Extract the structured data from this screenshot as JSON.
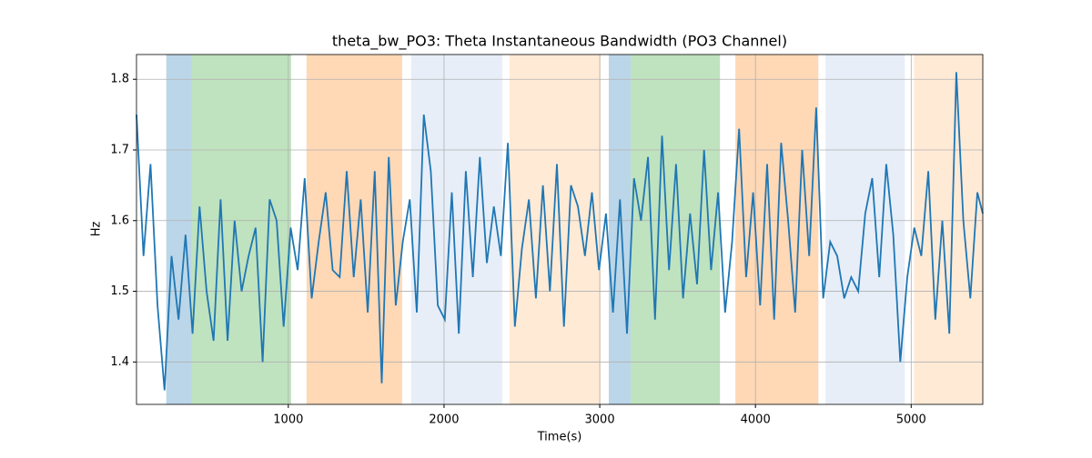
{
  "chart_data": {
    "type": "line",
    "title": "theta_bw_PO3: Theta Instantaneous Bandwidth (PO3 Channel)",
    "xlabel": "Time(s)",
    "ylabel": "Hz",
    "xlim": [
      25,
      5460
    ],
    "ylim": [
      1.34,
      1.835
    ],
    "xticks": [
      1000,
      2000,
      3000,
      4000,
      5000
    ],
    "yticks": [
      1.4,
      1.5,
      1.6,
      1.7,
      1.8
    ],
    "grid": true,
    "spans": [
      {
        "start": 216,
        "end": 380,
        "color": "#1f77b4",
        "alpha": 0.3
      },
      {
        "start": 380,
        "end": 1018,
        "color": "#2ca02c",
        "alpha": 0.3
      },
      {
        "start": 1117,
        "end": 1731,
        "color": "#ff7f0e",
        "alpha": 0.3
      },
      {
        "start": 1789,
        "end": 2374,
        "color": "#aec7e8",
        "alpha": 0.3
      },
      {
        "start": 2421,
        "end": 3006,
        "color": "#ffbb78",
        "alpha": 0.3
      },
      {
        "start": 3058,
        "end": 3199,
        "color": "#1f77b4",
        "alpha": 0.3
      },
      {
        "start": 3199,
        "end": 3772,
        "color": "#2ca02c",
        "alpha": 0.3
      },
      {
        "start": 3871,
        "end": 4404,
        "color": "#ff7f0e",
        "alpha": 0.3
      },
      {
        "start": 4450,
        "end": 4959,
        "color": "#aec7e8",
        "alpha": 0.3
      },
      {
        "start": 5018,
        "end": 5460,
        "color": "#ffbb78",
        "alpha": 0.3
      }
    ],
    "x": [
      25,
      70,
      115,
      160,
      205,
      250,
      295,
      340,
      385,
      430,
      475,
      520,
      565,
      610,
      655,
      700,
      745,
      790,
      835,
      880,
      925,
      970,
      1015,
      1060,
      1105,
      1150,
      1195,
      1240,
      1285,
      1330,
      1375,
      1420,
      1465,
      1510,
      1555,
      1600,
      1645,
      1690,
      1735,
      1780,
      1825,
      1870,
      1915,
      1960,
      2005,
      2050,
      2095,
      2140,
      2185,
      2230,
      2275,
      2320,
      2365,
      2410,
      2455,
      2500,
      2545,
      2590,
      2635,
      2680,
      2725,
      2770,
      2815,
      2860,
      2905,
      2950,
      2995,
      3040,
      3085,
      3130,
      3175,
      3220,
      3265,
      3310,
      3355,
      3400,
      3445,
      3490,
      3535,
      3580,
      3625,
      3670,
      3715,
      3760,
      3805,
      3850,
      3895,
      3940,
      3985,
      4030,
      4075,
      4120,
      4165,
      4210,
      4255,
      4300,
      4345,
      4390,
      4435,
      4480,
      4525,
      4570,
      4615,
      4660,
      4705,
      4750,
      4795,
      4840,
      4885,
      4930,
      4975,
      5020,
      5065,
      5110,
      5155,
      5200,
      5245,
      5290,
      5335,
      5380,
      5425,
      5460
    ],
    "series": [
      {
        "name": "theta_bw_PO3",
        "color": "#1f77b4",
        "values": [
          1.75,
          1.55,
          1.68,
          1.48,
          1.36,
          1.55,
          1.46,
          1.58,
          1.44,
          1.62,
          1.5,
          1.43,
          1.63,
          1.43,
          1.6,
          1.5,
          1.55,
          1.59,
          1.4,
          1.63,
          1.6,
          1.45,
          1.59,
          1.53,
          1.66,
          1.49,
          1.57,
          1.64,
          1.53,
          1.52,
          1.67,
          1.52,
          1.63,
          1.47,
          1.67,
          1.37,
          1.69,
          1.48,
          1.57,
          1.63,
          1.47,
          1.75,
          1.67,
          1.48,
          1.46,
          1.64,
          1.44,
          1.67,
          1.52,
          1.69,
          1.54,
          1.62,
          1.55,
          1.71,
          1.45,
          1.56,
          1.63,
          1.49,
          1.65,
          1.5,
          1.68,
          1.45,
          1.65,
          1.62,
          1.55,
          1.64,
          1.53,
          1.61,
          1.47,
          1.63,
          1.44,
          1.66,
          1.6,
          1.69,
          1.46,
          1.72,
          1.53,
          1.68,
          1.49,
          1.61,
          1.51,
          1.7,
          1.53,
          1.64,
          1.47,
          1.57,
          1.73,
          1.52,
          1.64,
          1.48,
          1.68,
          1.46,
          1.71,
          1.6,
          1.47,
          1.7,
          1.55,
          1.76,
          1.49,
          1.57,
          1.55,
          1.49,
          1.52,
          1.5,
          1.61,
          1.66,
          1.52,
          1.68,
          1.58,
          1.4,
          1.52,
          1.59,
          1.55,
          1.67,
          1.46,
          1.6,
          1.44,
          1.81,
          1.6,
          1.49,
          1.64,
          1.61
        ]
      }
    ]
  }
}
